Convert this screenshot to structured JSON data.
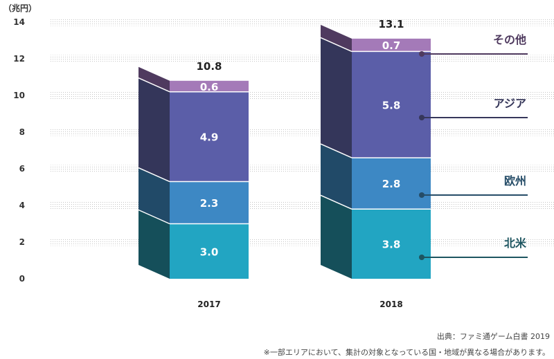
{
  "chart_data": {
    "type": "bar",
    "stacked": true,
    "unit_label": "（兆円）",
    "categories": [
      "2017",
      "2018"
    ],
    "totals": [
      "10.8",
      "13.1"
    ],
    "ylim": [
      0,
      14
    ],
    "yticks": [
      "0",
      "2",
      "4",
      "6",
      "8",
      "10",
      "12",
      "14"
    ],
    "grid": "dotted",
    "series": [
      {
        "name": "北米",
        "values": [
          3.0,
          3.8
        ],
        "labels": [
          "3.0",
          "3.8"
        ],
        "front": "#22a5c2",
        "side": "#154f5a",
        "line": "#1d5560"
      },
      {
        "name": "欧州",
        "values": [
          2.3,
          2.8
        ],
        "labels": [
          "2.3",
          "2.8"
        ],
        "front": "#3d88c4",
        "side": "#214a68",
        "line": "#254c67"
      },
      {
        "name": "アジア",
        "values": [
          4.9,
          5.8
        ],
        "labels": [
          "4.9",
          "5.8"
        ],
        "front": "#5b5ea8",
        "side": "#34365a",
        "line": "#36375a"
      },
      {
        "name": "その他",
        "values": [
          0.6,
          0.7
        ],
        "labels": [
          "0.6",
          "0.7"
        ],
        "front": "#a47ab8",
        "side": "#4f3a5f",
        "line": "#4f3a5f"
      }
    ]
  },
  "source": "出典：ファミ通ゲーム白書 2019",
  "footnote": "※一部エリアにおいて、集計の対象となっている国・地域が異なる場合があります。"
}
